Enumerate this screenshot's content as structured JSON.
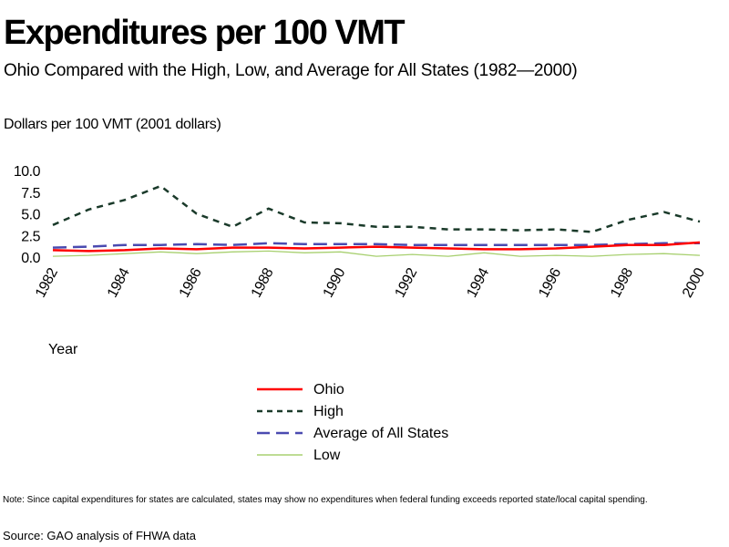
{
  "header": {
    "title": "Expenditures per 100 VMT",
    "subtitle": "Ohio Compared with the High, Low, and Average for All States (1982—2000)"
  },
  "chart_data": {
    "type": "line",
    "title": "Expenditures per 100 VMT",
    "subtitle": "Ohio Compared with the High, Low, and Average for All States (1982—2000)",
    "ylabel": "Dollars per 100 VMT (2001 dollars)",
    "xlabel": "Year",
    "ylim": [
      0,
      10
    ],
    "yticks": [
      0,
      2.5,
      5,
      7.5,
      10
    ],
    "ytick_labels": [
      "0.0",
      "2.5",
      "5.0",
      "7.5",
      "10.0"
    ],
    "x": [
      1982,
      1983,
      1984,
      1985,
      1986,
      1987,
      1988,
      1989,
      1990,
      1991,
      1992,
      1993,
      1994,
      1995,
      1996,
      1997,
      1998,
      1999,
      2000
    ],
    "xticks": [
      1982,
      1984,
      1986,
      1988,
      1990,
      1992,
      1994,
      1996,
      1998,
      2000
    ],
    "xtick_labels": [
      "1982",
      "1984",
      "1986",
      "1988",
      "1990",
      "1992",
      "1994",
      "1996",
      "1998",
      "2000"
    ],
    "grid": false,
    "legend_position": "below",
    "series": [
      {
        "name": "Ohio",
        "color": "#ff0000",
        "style": "solid",
        "values": [
          0.8,
          0.7,
          0.8,
          1.0,
          0.9,
          1.1,
          1.1,
          1.0,
          1.1,
          1.2,
          1.1,
          1.0,
          0.9,
          0.9,
          1.0,
          1.2,
          1.4,
          1.4,
          1.7
        ]
      },
      {
        "name": "High",
        "color": "#1a3a2a",
        "style": "dashed",
        "values": [
          3.7,
          5.5,
          6.6,
          8.2,
          5.0,
          3.5,
          5.6,
          4.0,
          3.9,
          3.5,
          3.5,
          3.2,
          3.2,
          3.1,
          3.2,
          2.9,
          4.3,
          5.2,
          4.1
        ]
      },
      {
        "name": "Average of All States",
        "color": "#4a4ab0",
        "style": "longdash",
        "values": [
          1.1,
          1.2,
          1.4,
          1.4,
          1.5,
          1.4,
          1.6,
          1.5,
          1.5,
          1.5,
          1.4,
          1.4,
          1.4,
          1.4,
          1.4,
          1.4,
          1.5,
          1.6,
          1.6
        ]
      },
      {
        "name": "Low",
        "color": "#a8d070",
        "style": "solid",
        "values": [
          0.1,
          0.2,
          0.4,
          0.6,
          0.4,
          0.6,
          0.7,
          0.5,
          0.6,
          0.1,
          0.3,
          0.1,
          0.5,
          0.1,
          0.2,
          0.1,
          0.3,
          0.4,
          0.2
        ]
      }
    ]
  },
  "footer": {
    "note": "Note: Since capital expenditures for states are calculated, states may show no expenditures when federal funding exceeds reported state/local capital spending.",
    "source": "Source: GAO analysis of FHWA data"
  }
}
